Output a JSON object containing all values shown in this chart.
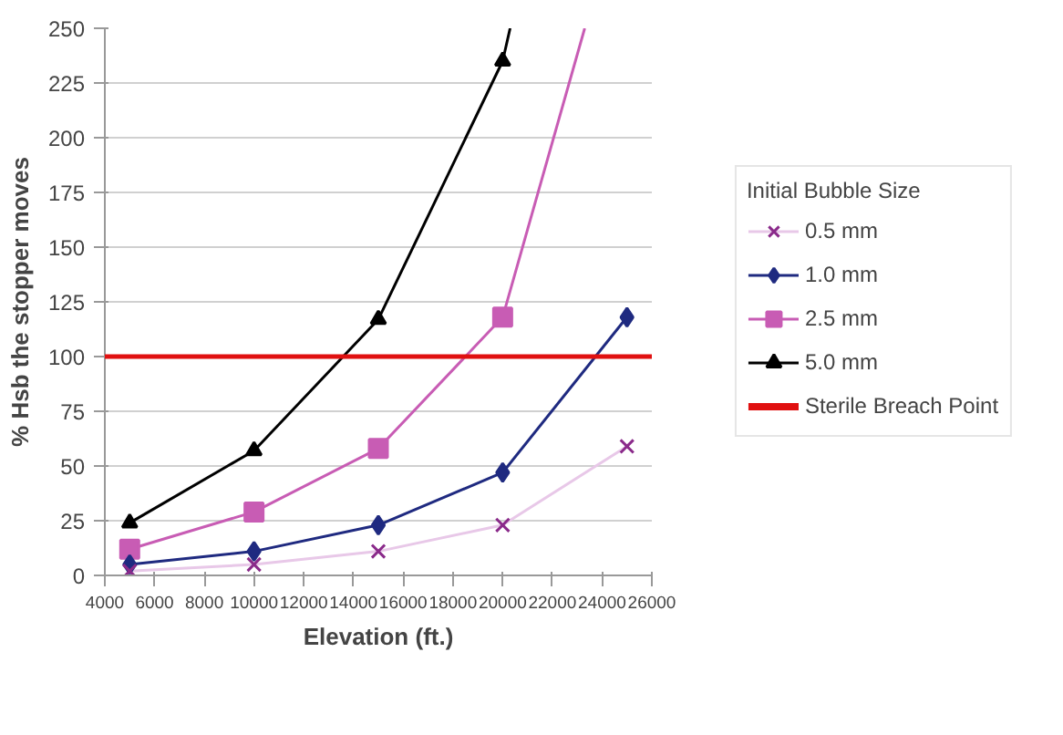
{
  "chart_data": {
    "type": "line",
    "xlabel": "Elevation (ft.)",
    "ylabel": "% Hsb the stopper moves",
    "legend_title": "Initial Bubble Size",
    "x": [
      5000,
      10000,
      15000,
      20000,
      25000
    ],
    "series": [
      {
        "name": "0.5 mm",
        "color": "#e8c8e8",
        "marker": "cross",
        "values": [
          2,
          5,
          11,
          23,
          59
        ]
      },
      {
        "name": "1.0 mm",
        "color": "#1f2a80",
        "marker": "diamond",
        "values": [
          5,
          11,
          23,
          47,
          118
        ]
      },
      {
        "name": "2.5 mm",
        "color": "#c85cb4",
        "marker": "square",
        "x": [
          5000,
          10000,
          15000,
          20000,
          23300
        ],
        "values": [
          12,
          29,
          58,
          118,
          250
        ]
      },
      {
        "name": "5.0 mm",
        "color": "#000000",
        "marker": "triangle",
        "x": [
          5000,
          10000,
          15000,
          20000,
          20300
        ],
        "values": [
          24,
          57,
          117,
          235,
          250
        ]
      }
    ],
    "ref_lines": [
      {
        "axis": "y",
        "value": 100,
        "label": "Sterile Breach Point",
        "color": "#e01010"
      }
    ],
    "xlim": [
      4000,
      26000
    ],
    "xticks": [
      4000,
      6000,
      8000,
      10000,
      12000,
      14000,
      16000,
      18000,
      20000,
      22000,
      24000,
      26000
    ],
    "ylim": [
      0,
      250
    ],
    "yticks": [
      0,
      25,
      50,
      75,
      100,
      125,
      150,
      175,
      200,
      225,
      250
    ],
    "grid": "y",
    "legend": "right"
  }
}
